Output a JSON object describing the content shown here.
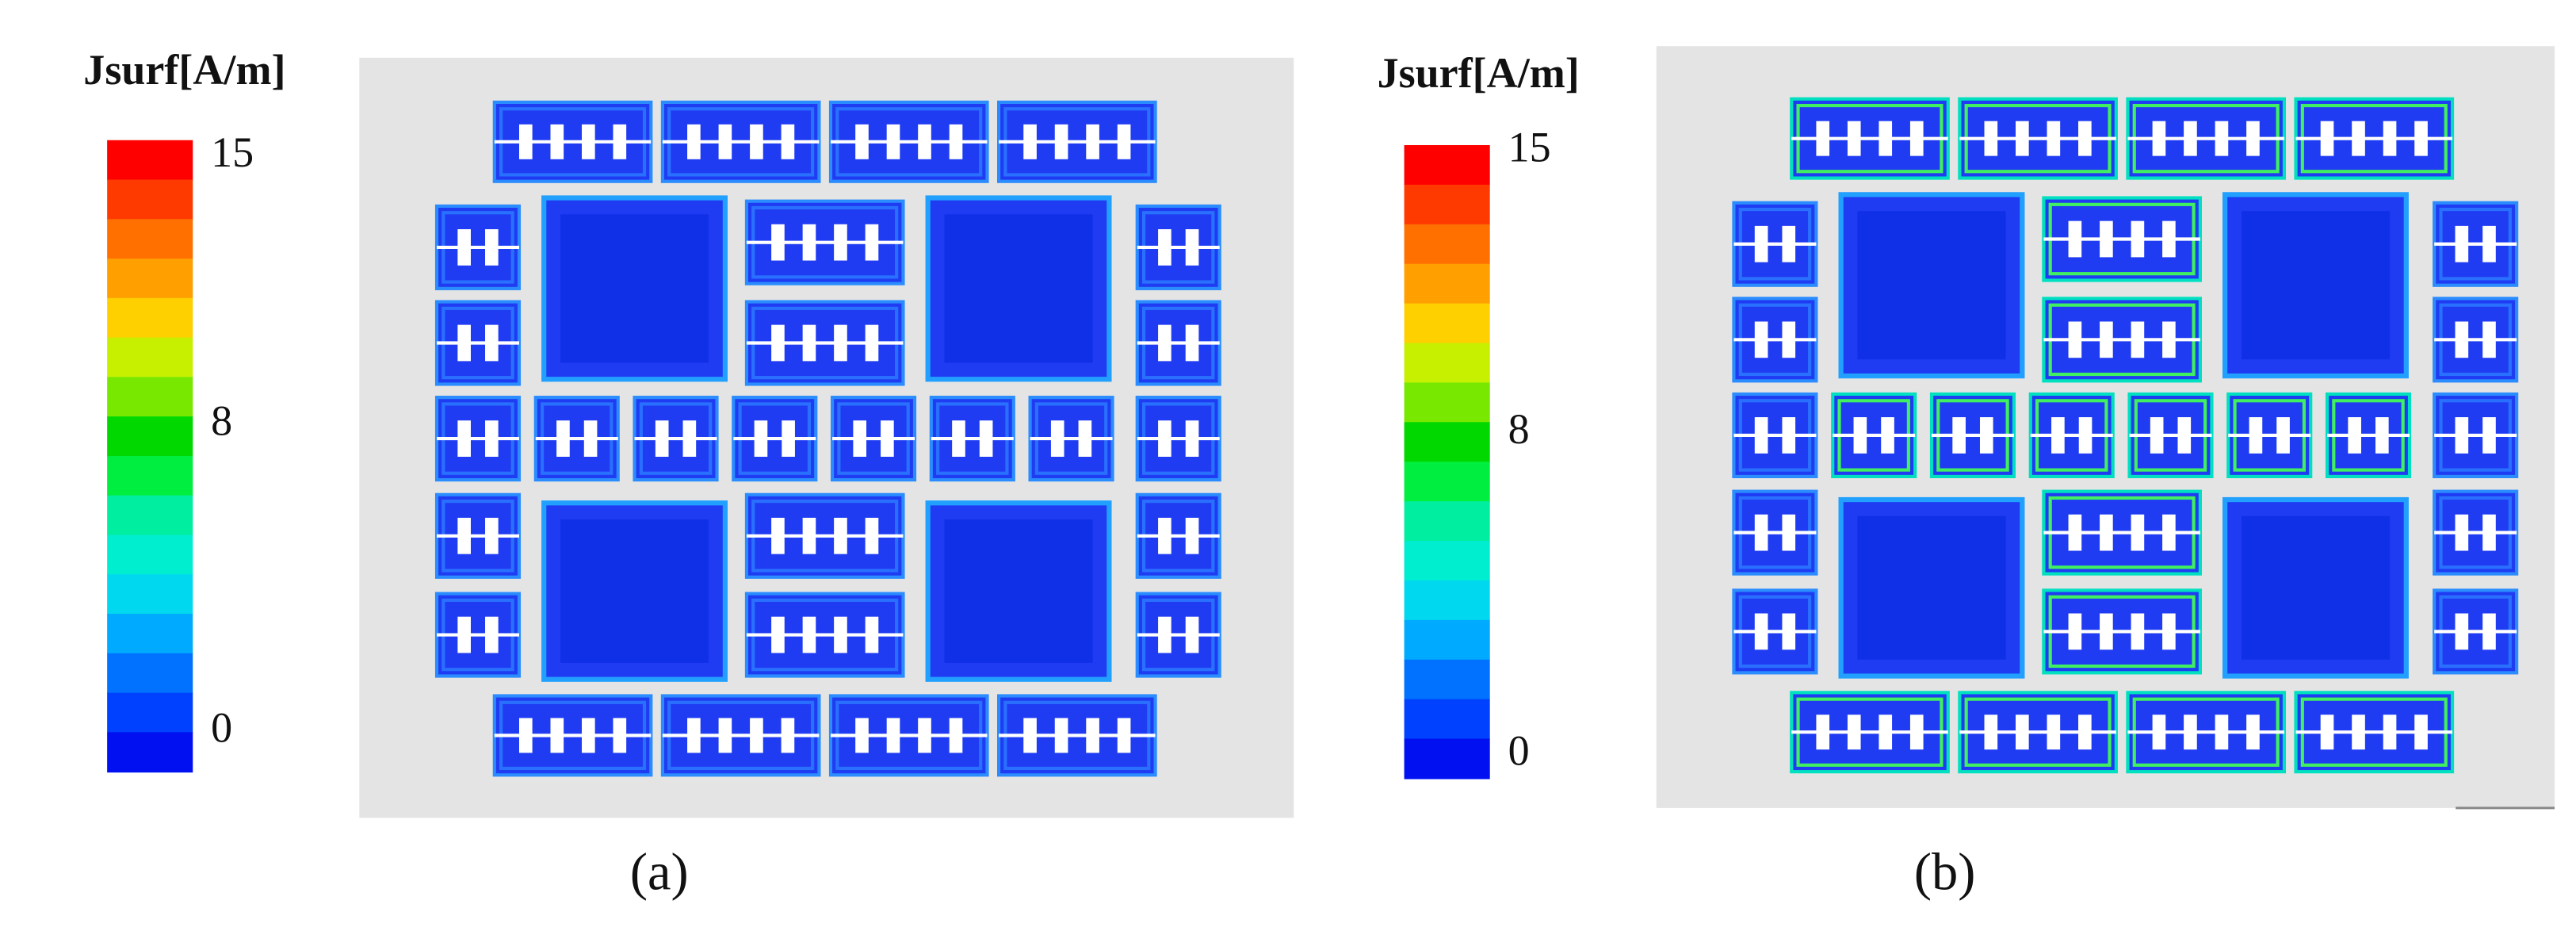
{
  "panels": [
    {
      "label": "(a)",
      "colorbar": {
        "title": "Jsurf[A/m]",
        "ticks": [
          15,
          8,
          0
        ]
      }
    },
    {
      "label": "(b)",
      "colorbar": {
        "title": "Jsurf[A/m]",
        "ticks": [
          15,
          8,
          0
        ]
      }
    }
  ]
}
